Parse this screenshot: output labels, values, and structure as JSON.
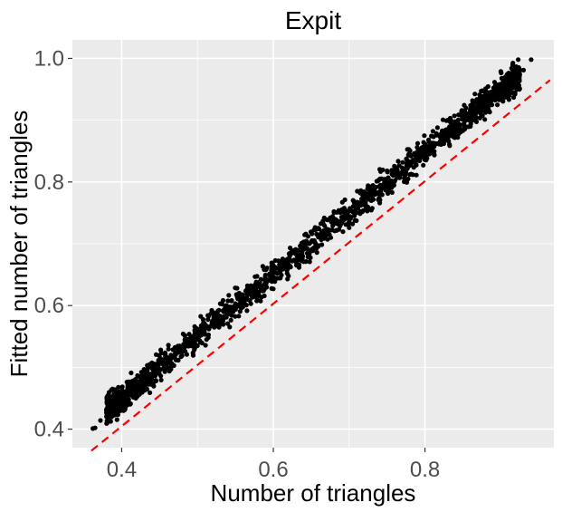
{
  "chart_data": {
    "type": "scatter",
    "title": "Expit",
    "xlabel": "Number of triangles",
    "ylabel": "Fitted number of triangles",
    "xlim": [
      0.335,
      0.97
    ],
    "ylim": [
      0.37,
      1.03
    ],
    "x_ticks": [
      {
        "value": 0.4,
        "label": "0.4"
      },
      {
        "value": 0.6,
        "label": "0.6"
      },
      {
        "value": 0.8,
        "label": "0.8"
      }
    ],
    "y_ticks": [
      {
        "value": 0.4,
        "label": "0.4"
      },
      {
        "value": 0.6,
        "label": "0.6"
      },
      {
        "value": 0.8,
        "label": "0.8"
      },
      {
        "value": 1.0,
        "label": "1.0"
      }
    ],
    "grid": true,
    "background": "#ebebeb",
    "point_color": "#000000",
    "reference_line": {
      "style": "dashed",
      "color": "#ff0000",
      "points": [
        [
          0.36,
          0.365
        ],
        [
          0.965,
          0.965
        ]
      ]
    },
    "point_trend": {
      "intercept": 0.05,
      "slope": 1.0,
      "x_range": [
        0.36,
        0.945
      ]
    },
    "series": [
      {
        "points": [
          [
            0.362,
            0.401
          ],
          [
            0.365,
            0.402
          ],
          [
            0.38,
            0.432
          ],
          [
            0.385,
            0.423
          ],
          [
            0.39,
            0.43
          ],
          [
            0.395,
            0.44
          ],
          [
            0.4,
            0.446
          ],
          [
            0.405,
            0.452
          ],
          [
            0.41,
            0.457
          ],
          [
            0.415,
            0.463
          ],
          [
            0.42,
            0.468
          ],
          [
            0.425,
            0.478
          ],
          [
            0.43,
            0.477
          ],
          [
            0.435,
            0.488
          ],
          [
            0.44,
            0.487
          ],
          [
            0.445,
            0.498
          ],
          [
            0.45,
            0.497
          ],
          [
            0.455,
            0.508
          ],
          [
            0.46,
            0.506
          ],
          [
            0.465,
            0.518
          ],
          [
            0.47,
            0.516
          ],
          [
            0.475,
            0.527
          ],
          [
            0.48,
            0.528
          ],
          [
            0.485,
            0.535
          ],
          [
            0.49,
            0.542
          ],
          [
            0.495,
            0.545
          ],
          [
            0.5,
            0.553
          ],
          [
            0.505,
            0.552
          ],
          [
            0.51,
            0.563
          ],
          [
            0.515,
            0.562
          ],
          [
            0.52,
            0.573
          ],
          [
            0.525,
            0.572
          ],
          [
            0.53,
            0.583
          ],
          [
            0.535,
            0.582
          ],
          [
            0.54,
            0.593
          ],
          [
            0.545,
            0.592
          ],
          [
            0.55,
            0.603
          ],
          [
            0.555,
            0.602
          ],
          [
            0.56,
            0.613
          ],
          [
            0.565,
            0.612
          ],
          [
            0.57,
            0.623
          ],
          [
            0.575,
            0.622
          ],
          [
            0.58,
            0.633
          ],
          [
            0.585,
            0.632
          ],
          [
            0.59,
            0.643
          ],
          [
            0.595,
            0.642
          ],
          [
            0.6,
            0.653
          ],
          [
            0.605,
            0.652
          ],
          [
            0.61,
            0.663
          ],
          [
            0.615,
            0.662
          ],
          [
            0.62,
            0.673
          ],
          [
            0.625,
            0.672
          ],
          [
            0.63,
            0.683
          ],
          [
            0.635,
            0.682
          ],
          [
            0.64,
            0.693
          ],
          [
            0.645,
            0.692
          ],
          [
            0.65,
            0.703
          ],
          [
            0.655,
            0.702
          ],
          [
            0.66,
            0.713
          ],
          [
            0.665,
            0.712
          ],
          [
            0.67,
            0.723
          ],
          [
            0.675,
            0.722
          ],
          [
            0.68,
            0.733
          ],
          [
            0.685,
            0.732
          ],
          [
            0.69,
            0.743
          ],
          [
            0.695,
            0.742
          ],
          [
            0.7,
            0.753
          ],
          [
            0.705,
            0.752
          ],
          [
            0.71,
            0.763
          ],
          [
            0.715,
            0.762
          ],
          [
            0.72,
            0.773
          ],
          [
            0.725,
            0.772
          ],
          [
            0.73,
            0.783
          ],
          [
            0.735,
            0.782
          ],
          [
            0.74,
            0.793
          ],
          [
            0.745,
            0.792
          ],
          [
            0.75,
            0.803
          ],
          [
            0.755,
            0.802
          ],
          [
            0.76,
            0.813
          ],
          [
            0.765,
            0.812
          ],
          [
            0.77,
            0.823
          ],
          [
            0.775,
            0.822
          ],
          [
            0.78,
            0.833
          ],
          [
            0.785,
            0.832
          ],
          [
            0.79,
            0.843
          ],
          [
            0.795,
            0.842
          ],
          [
            0.8,
            0.853
          ],
          [
            0.805,
            0.852
          ],
          [
            0.81,
            0.863
          ],
          [
            0.815,
            0.862
          ],
          [
            0.82,
            0.873
          ],
          [
            0.825,
            0.872
          ],
          [
            0.83,
            0.883
          ],
          [
            0.835,
            0.882
          ],
          [
            0.84,
            0.893
          ],
          [
            0.845,
            0.892
          ],
          [
            0.85,
            0.903
          ],
          [
            0.855,
            0.902
          ],
          [
            0.86,
            0.913
          ],
          [
            0.865,
            0.912
          ],
          [
            0.87,
            0.923
          ],
          [
            0.875,
            0.922
          ],
          [
            0.88,
            0.933
          ],
          [
            0.885,
            0.932
          ],
          [
            0.89,
            0.943
          ],
          [
            0.895,
            0.942
          ],
          [
            0.9,
            0.953
          ],
          [
            0.905,
            0.952
          ],
          [
            0.91,
            0.962
          ],
          [
            0.915,
            0.963
          ],
          [
            0.92,
            0.972
          ],
          [
            0.925,
            0.974
          ],
          [
            0.93,
            0.981
          ],
          [
            0.94,
            0.998
          ],
          [
            0.372,
            0.414
          ],
          [
            0.41,
            0.468
          ],
          [
            0.445,
            0.479
          ],
          [
            0.5,
            0.535
          ],
          [
            0.56,
            0.598
          ],
          [
            0.6,
            0.627
          ],
          [
            0.64,
            0.703
          ],
          [
            0.7,
            0.736
          ],
          [
            0.75,
            0.818
          ],
          [
            0.8,
            0.836
          ],
          [
            0.85,
            0.883
          ],
          [
            0.88,
            0.951
          ],
          [
            0.905,
            0.94
          ],
          [
            0.925,
            0.951
          ],
          [
            0.92,
            0.963
          ],
          [
            0.465,
            0.497
          ],
          [
            0.53,
            0.603
          ],
          [
            0.62,
            0.648
          ],
          [
            0.68,
            0.752
          ],
          [
            0.78,
            0.812
          ],
          [
            0.83,
            0.9
          ],
          [
            0.86,
            0.89
          ],
          [
            0.555,
            0.62
          ],
          [
            0.725,
            0.794
          ],
          [
            0.64,
            0.671
          ]
        ]
      }
    ]
  }
}
